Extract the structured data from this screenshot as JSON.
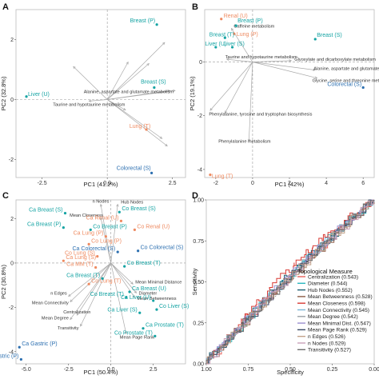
{
  "colors": {
    "teal": "#14a3a3",
    "orange": "#ee8a60",
    "blue": "#2c6fb0",
    "arrow": "#a9a9a9"
  },
  "chart_data": [
    {
      "type": "scatter",
      "letter": "A",
      "xlabel": "PC1 (41.2%)",
      "ylabel": "PC2 (32.8%)",
      "xlim": [
        -3.5,
        3.0
      ],
      "ylim": [
        -2.6,
        3.0
      ],
      "xticks": [
        -2.5,
        0.0,
        2.5
      ],
      "yticks": [
        -2,
        0,
        2
      ],
      "xtick_labels": [
        "-2.5",
        "0.0",
        "2.5"
      ],
      "ytick_labels": [
        "-2",
        "0",
        "2"
      ],
      "points": [
        {
          "label": "Breast (P)",
          "x": 1.9,
          "y": 2.5,
          "color": "teal"
        },
        {
          "label": "Liver (U)",
          "x": -3.1,
          "y": 0.1,
          "color": "teal"
        },
        {
          "label": "Breast (S)",
          "x": 1.8,
          "y": 0.4,
          "color": "teal"
        },
        {
          "label": "Lung (T)",
          "x": 1.5,
          "y": -1.0,
          "color": "orange"
        },
        {
          "label": "Colorectal (S)",
          "x": 1.7,
          "y": -2.45,
          "color": "blue"
        }
      ],
      "loadings": [
        {
          "label": "",
          "x": 2.2,
          "y": 1.9
        },
        {
          "label": "",
          "x": 2.4,
          "y": 0.3
        },
        {
          "label": "",
          "x": 1.6,
          "y": 1.2
        },
        {
          "label": "",
          "x": 0.8,
          "y": 1.25
        },
        {
          "label": "",
          "x": -1.3,
          "y": 1.1
        },
        {
          "label": "",
          "x": 2.1,
          "y": -1.3
        },
        {
          "label": "",
          "x": 2.3,
          "y": -1.55
        },
        {
          "label": "",
          "x": 0.7,
          "y": -0.35
        },
        {
          "label": "Alanine, aspartate and glutamate metabolism",
          "x": 2.6,
          "y": 0.3
        },
        {
          "label": "Taurine and hypotaurine metabolism",
          "x": -0.7,
          "y": -0.05
        }
      ]
    },
    {
      "type": "scatter",
      "letter": "B",
      "xlabel": "PC1 (42%)",
      "ylabel": "PC2 (19.1%)",
      "xlim": [
        -2.6,
        6.6
      ],
      "ylim": [
        -4.3,
        1.95
      ],
      "xticks": [
        -2,
        0,
        2,
        4,
        6
      ],
      "yticks": [
        -4,
        -2,
        0
      ],
      "xtick_labels": [
        "-2",
        "0",
        "2",
        "4",
        "6"
      ],
      "ytick_labels": [
        "-4",
        "-2",
        "0"
      ],
      "points": [
        {
          "label": "Renal (U)",
          "x": -1.7,
          "y": 1.6,
          "color": "orange"
        },
        {
          "label": "Breast (P)",
          "x": -0.9,
          "y": 1.35,
          "color": "teal"
        },
        {
          "label": "Lung (P)",
          "x": -1.0,
          "y": 1.05,
          "color": "orange"
        },
        {
          "label": "Breast (T)",
          "x": -1.5,
          "y": 0.9,
          "color": "teal"
        },
        {
          "label": "Breast (S)",
          "x": 3.4,
          "y": 0.85,
          "color": "teal"
        },
        {
          "label": "Liver (U)",
          "x": -2.0,
          "y": 0.55,
          "color": "teal"
        },
        {
          "label": "Liver (S)",
          "x": -1.1,
          "y": 0.55,
          "color": "teal"
        },
        {
          "label": "Colorectal (S)",
          "x": 6.0,
          "y": -0.95,
          "color": "blue"
        },
        {
          "label": "Lung (T)",
          "x": -2.3,
          "y": -4.2,
          "color": "orange"
        }
      ],
      "loadings": [
        {
          "label": "Caffeine metabolism",
          "x": -1.15,
          "y": 1.25
        },
        {
          "label": "Taurine and hypotaurine metabolism",
          "x": -1.4,
          "y": 0.1
        },
        {
          "label": "Glyoxylate and dicarboxylate metabolism",
          "x": 2.1,
          "y": 0.05
        },
        {
          "label": "Alanine, aspartate and glutamate metabolism",
          "x": 3.4,
          "y": -0.3
        },
        {
          "label": "Glycine, serine and threonine metabolism",
          "x": 3.5,
          "y": -0.6
        },
        {
          "label": "Phenylalanine, tyrosine and tryptophan biosynthesis",
          "x": -1.5,
          "y": -1.9
        },
        {
          "label": "Phenylalanine metabolism",
          "x": -0.2,
          "y": -2.95
        },
        {
          "label": "",
          "x": -2.3,
          "y": -1.8
        }
      ]
    },
    {
      "type": "scatter",
      "letter": "C",
      "xlabel": "PC1 (50.4%)",
      "ylabel": "PC2 (30.8%)",
      "xlim": [
        -5.6,
        4.4
      ],
      "ylim": [
        -4.55,
        2.85
      ],
      "xticks": [
        -5.0,
        -2.5,
        0.0,
        2.5
      ],
      "yticks": [
        -4,
        -2,
        0,
        2
      ],
      "xtick_labels": [
        "-5.0",
        "-2.5",
        "0.0",
        "2.5"
      ],
      "ytick_labels": [
        "-4",
        "-2",
        "0",
        "2"
      ],
      "points": [
        {
          "label": "Ca Breast (S)",
          "x": -2.7,
          "y": 2.25,
          "color": "teal"
        },
        {
          "label": "Co Breast (S)",
          "x": 0.5,
          "y": 2.3,
          "color": "teal"
        },
        {
          "label": "Ca Breast (P)",
          "x": -2.8,
          "y": 1.6,
          "color": "teal"
        },
        {
          "label": "Co Breast (P)",
          "x": -1.2,
          "y": 1.5,
          "color": "teal"
        },
        {
          "label": "Ca Renal (U)",
          "x": 0.6,
          "y": 1.9,
          "color": "orange"
        },
        {
          "label": "Co Renal (U)",
          "x": 1.4,
          "y": 1.5,
          "color": "orange"
        },
        {
          "label": "Ca Lung (P)",
          "x": -0.3,
          "y": 1.2,
          "color": "orange"
        },
        {
          "label": "Co Lung (P)",
          "x": -1.3,
          "y": 0.85,
          "color": "orange"
        },
        {
          "label": "Ca Colorectal (S)",
          "x": 0.4,
          "y": 0.5,
          "color": "blue"
        },
        {
          "label": "Co Colorectal (S)",
          "x": 1.6,
          "y": 0.55,
          "color": "blue"
        },
        {
          "label": "Co Lung (S)",
          "x": -0.8,
          "y": 0.3,
          "color": "orange"
        },
        {
          "label": "Ca Lung (S)",
          "x": -2.8,
          "y": 0.1,
          "color": "orange"
        },
        {
          "label": "Ca MM (T)",
          "x": -0.9,
          "y": -0.2,
          "color": "orange"
        },
        {
          "label": "Co Breast (T)",
          "x": 0.8,
          "y": -0.15,
          "color": "teal"
        },
        {
          "label": "Ca Breast (T)",
          "x": -0.5,
          "y": -0.7,
          "color": "teal"
        },
        {
          "label": "Co Lung (T)",
          "x": -1.3,
          "y": -0.95,
          "color": "orange"
        },
        {
          "label": "Co Breast (T)",
          "x": 0.9,
          "y": -1.55,
          "color": "teal"
        },
        {
          "label": "Ca Breast (U)",
          "x": 1.1,
          "y": -1.3,
          "color": "teal"
        },
        {
          "label": "Ca Liver (U)",
          "x": 2.5,
          "y": -1.7,
          "color": "teal"
        },
        {
          "label": "Co Liver (S)",
          "x": 2.7,
          "y": -2.1,
          "color": "teal"
        },
        {
          "label": "Ca Liver (S)",
          "x": 1.7,
          "y": -2.25,
          "color": "teal"
        },
        {
          "label": "Ca Prostate (T)",
          "x": 1.9,
          "y": -2.95,
          "color": "teal"
        },
        {
          "label": "Co Prostate (T)",
          "x": 2.6,
          "y": -3.3,
          "color": "teal"
        },
        {
          "label": "Ca Gastric (P)",
          "x": -5.4,
          "y": -3.8,
          "color": "blue"
        },
        {
          "label": "Co Gastric (P)",
          "x": -5.3,
          "y": -4.35,
          "color": "blue"
        }
      ],
      "loadings": [
        {
          "label": "n Nodes",
          "x": -0.6,
          "y": 2.65
        },
        {
          "label": "Hub Nodes",
          "x": 0.4,
          "y": 2.65
        },
        {
          "label": "Mean Closeness",
          "x": -0.6,
          "y": 2.05
        },
        {
          "label": "Mean Minimal Distance",
          "x": 1.3,
          "y": -0.95
        },
        {
          "label": "n Edges",
          "x": -2.5,
          "y": -1.5
        },
        {
          "label": "Mean Connectivity",
          "x": -2.4,
          "y": -1.75
        },
        {
          "label": "Diameter",
          "x": 1.5,
          "y": -1.35
        },
        {
          "label": "Mean Betweenness",
          "x": 1.4,
          "y": -1.55
        },
        {
          "label": "Centralization",
          "x": -2.0,
          "y": -2.35
        },
        {
          "label": "Mean Degree",
          "x": -2.4,
          "y": -2.55
        },
        {
          "label": "Transitivity",
          "x": -1.8,
          "y": -2.85
        },
        {
          "label": "Mean Page Rank",
          "x": 0.9,
          "y": -3.2
        }
      ]
    },
    {
      "type": "line",
      "letter": "D",
      "xlabel": "Specificity",
      "ylabel": "Sensitivity",
      "xlim": [
        1.0,
        0.0
      ],
      "ylim": [
        0.0,
        1.0
      ],
      "xticks": [
        1.0,
        0.75,
        0.5,
        0.25,
        0.0
      ],
      "yticks": [
        0.0,
        0.25,
        0.5,
        0.75,
        1.0
      ],
      "xtick_labels": [
        "1.00",
        "0.75",
        "0.50",
        "0.25",
        "0.00"
      ],
      "ytick_labels": [
        "0.00",
        "0.25",
        "0.50",
        "0.75",
        "1.00"
      ],
      "legend_title": "Topological Measure",
      "legend_position": "bottom-right",
      "series": [
        {
          "name": "Centralization (0.543)",
          "color": "#e8605a",
          "auc": 0.543
        },
        {
          "name": "Diameter (0.544)",
          "color": "#2bb8c0",
          "auc": 0.544
        },
        {
          "name": "Hub Nodes (0.552)",
          "color": "#1f5f73",
          "auc": 0.552
        },
        {
          "name": "Mean Betweenness (0.528)",
          "color": "#8a5a44",
          "auc": 0.528
        },
        {
          "name": "Mean Closeness (0.598)",
          "color": "#d83a34",
          "auc": 0.598
        },
        {
          "name": "Mean Connectivity (0.545)",
          "color": "#7bb6d6",
          "auc": 0.545
        },
        {
          "name": "Mean Degree (0.542)",
          "color": "#9aa0a6",
          "auc": 0.542
        },
        {
          "name": "Mean Minimal Dist. (0.547)",
          "color": "#9b8fd0",
          "auc": 0.547
        },
        {
          "name": "Mean Page Rank (0.529)",
          "color": "#3a4a66",
          "auc": 0.529
        },
        {
          "name": "n Edges (0.526)",
          "color": "#c2a28a",
          "auc": 0.526
        },
        {
          "name": "n Nodes (0.529)",
          "color": "#c9a1b8",
          "auc": 0.529
        },
        {
          "name": "Transitivity (0.527)",
          "color": "#6f6f6f",
          "auc": 0.527
        }
      ]
    }
  ]
}
